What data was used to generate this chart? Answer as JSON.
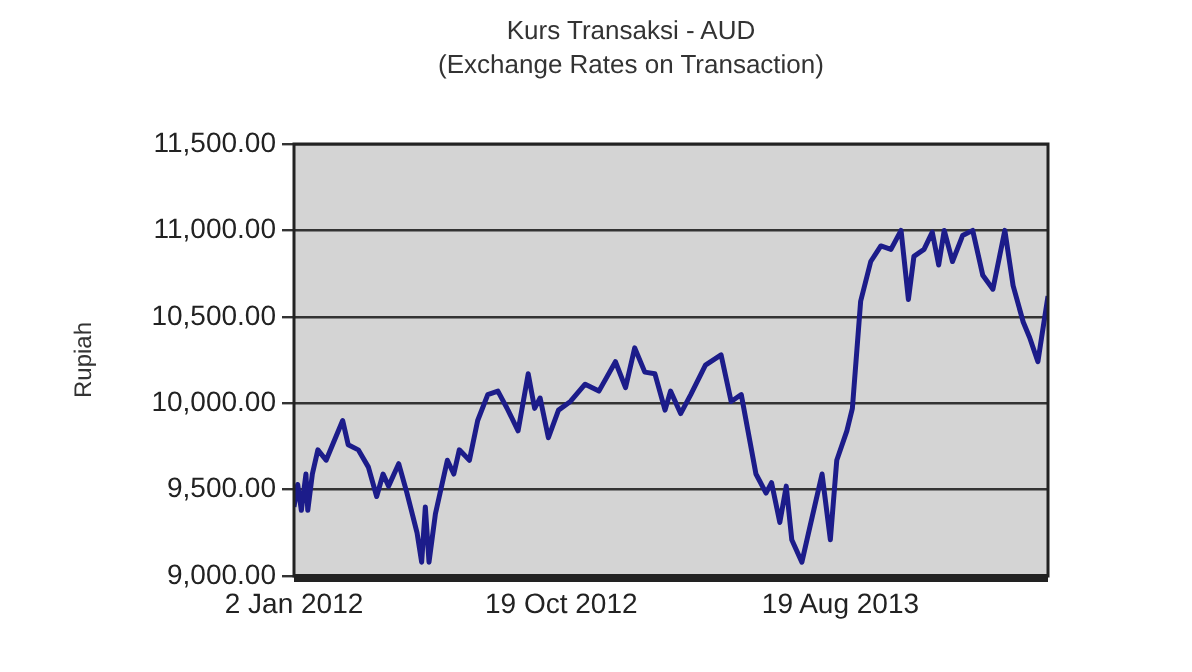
{
  "chart_data": {
    "type": "line",
    "title": "Kurs Transaksi - AUD",
    "subtitle": "(Exchange Rates on Transaction)",
    "ylabel": "Rupiah",
    "x": [
      "2012-01-02",
      "2012-01-06",
      "2012-01-10",
      "2012-01-15",
      "2012-01-17",
      "2012-01-22",
      "2012-01-28",
      "2012-02-06",
      "2012-02-13",
      "2012-02-24",
      "2012-03-01",
      "2012-03-12",
      "2012-03-23",
      "2012-04-01",
      "2012-04-08",
      "2012-04-14",
      "2012-04-25",
      "2012-05-04",
      "2012-05-15",
      "2012-05-20",
      "2012-05-24",
      "2012-05-28",
      "2012-06-04",
      "2012-06-17",
      "2012-06-24",
      "2012-06-30",
      "2012-07-11",
      "2012-07-20",
      "2012-07-31",
      "2012-08-11",
      "2012-08-22",
      "2012-09-02",
      "2012-09-13",
      "2012-09-20",
      "2012-09-26",
      "2012-10-05",
      "2012-10-16",
      "2012-10-29",
      "2012-11-14",
      "2012-11-29",
      "2012-12-17",
      "2012-12-28",
      "2013-01-07",
      "2013-01-18",
      "2013-01-29",
      "2013-02-09",
      "2013-02-15",
      "2013-02-26",
      "2013-03-09",
      "2013-03-25",
      "2013-04-11",
      "2013-04-22",
      "2013-05-03",
      "2013-05-19",
      "2013-05-30",
      "2013-06-05",
      "2013-06-14",
      "2013-06-21",
      "2013-06-27",
      "2013-07-08",
      "2013-07-17",
      "2013-07-30",
      "2013-08-08",
      "2013-08-15",
      "2013-08-26",
      "2013-09-01",
      "2013-09-10",
      "2013-09-21",
      "2013-10-02",
      "2013-10-13",
      "2013-10-24",
      "2013-11-01",
      "2013-11-07",
      "2013-11-18",
      "2013-11-27",
      "2013-12-04",
      "2013-12-10",
      "2013-12-19",
      "2013-12-30",
      "2014-01-10",
      "2014-01-21",
      "2014-02-01",
      "2014-02-14",
      "2014-02-23",
      "2014-03-06",
      "2014-03-13",
      "2014-03-22",
      "2014-03-26",
      "2014-04-02"
    ],
    "series": [
      {
        "color": "#1c1c8a",
        "values": [
          9400,
          9530,
          9380,
          9590,
          9380,
          9590,
          9730,
          9670,
          9760,
          9900,
          9760,
          9730,
          9630,
          9460,
          9590,
          9520,
          9650,
          9480,
          9250,
          9080,
          9400,
          9080,
          9360,
          9670,
          9590,
          9730,
          9670,
          9900,
          10050,
          10070,
          9960,
          9840,
          10170,
          9970,
          10030,
          9800,
          9960,
          10010,
          10110,
          10070,
          10240,
          10090,
          10320,
          10180,
          10170,
          9960,
          10070,
          9940,
          10050,
          10220,
          10280,
          10010,
          10050,
          9590,
          9480,
          9540,
          9310,
          9520,
          9210,
          9080,
          9290,
          9590,
          9210,
          9670,
          9840,
          9970,
          10590,
          10820,
          10910,
          10890,
          11000,
          10600,
          10850,
          10890,
          10990,
          10800,
          11000,
          10820,
          10970,
          11000,
          10740,
          10660,
          11000,
          10680,
          10470,
          10380,
          10240,
          10380,
          10620
        ]
      }
    ],
    "xlim": [
      "2012-01-02",
      "2014-04-02"
    ],
    "xticks": [
      {
        "value": "2012-01-02",
        "label": "2 Jan 2012"
      },
      {
        "value": "2012-10-19",
        "label": "19 Oct 2012"
      },
      {
        "value": "2013-08-19",
        "label": "19 Aug 2013"
      }
    ],
    "ylim": [
      9000,
      11500
    ],
    "yticks": [
      {
        "value": 9000,
        "label": "9,000.00"
      },
      {
        "value": 9500,
        "label": "9,500.00"
      },
      {
        "value": 10000,
        "label": "10,000.00"
      },
      {
        "value": 10500,
        "label": "10,500.00"
      },
      {
        "value": 11000,
        "label": "11,000.00"
      },
      {
        "value": 11500,
        "label": "11,500.00"
      }
    ],
    "grid": "y",
    "legend": false,
    "marker": "none",
    "line_style": "solid"
  }
}
